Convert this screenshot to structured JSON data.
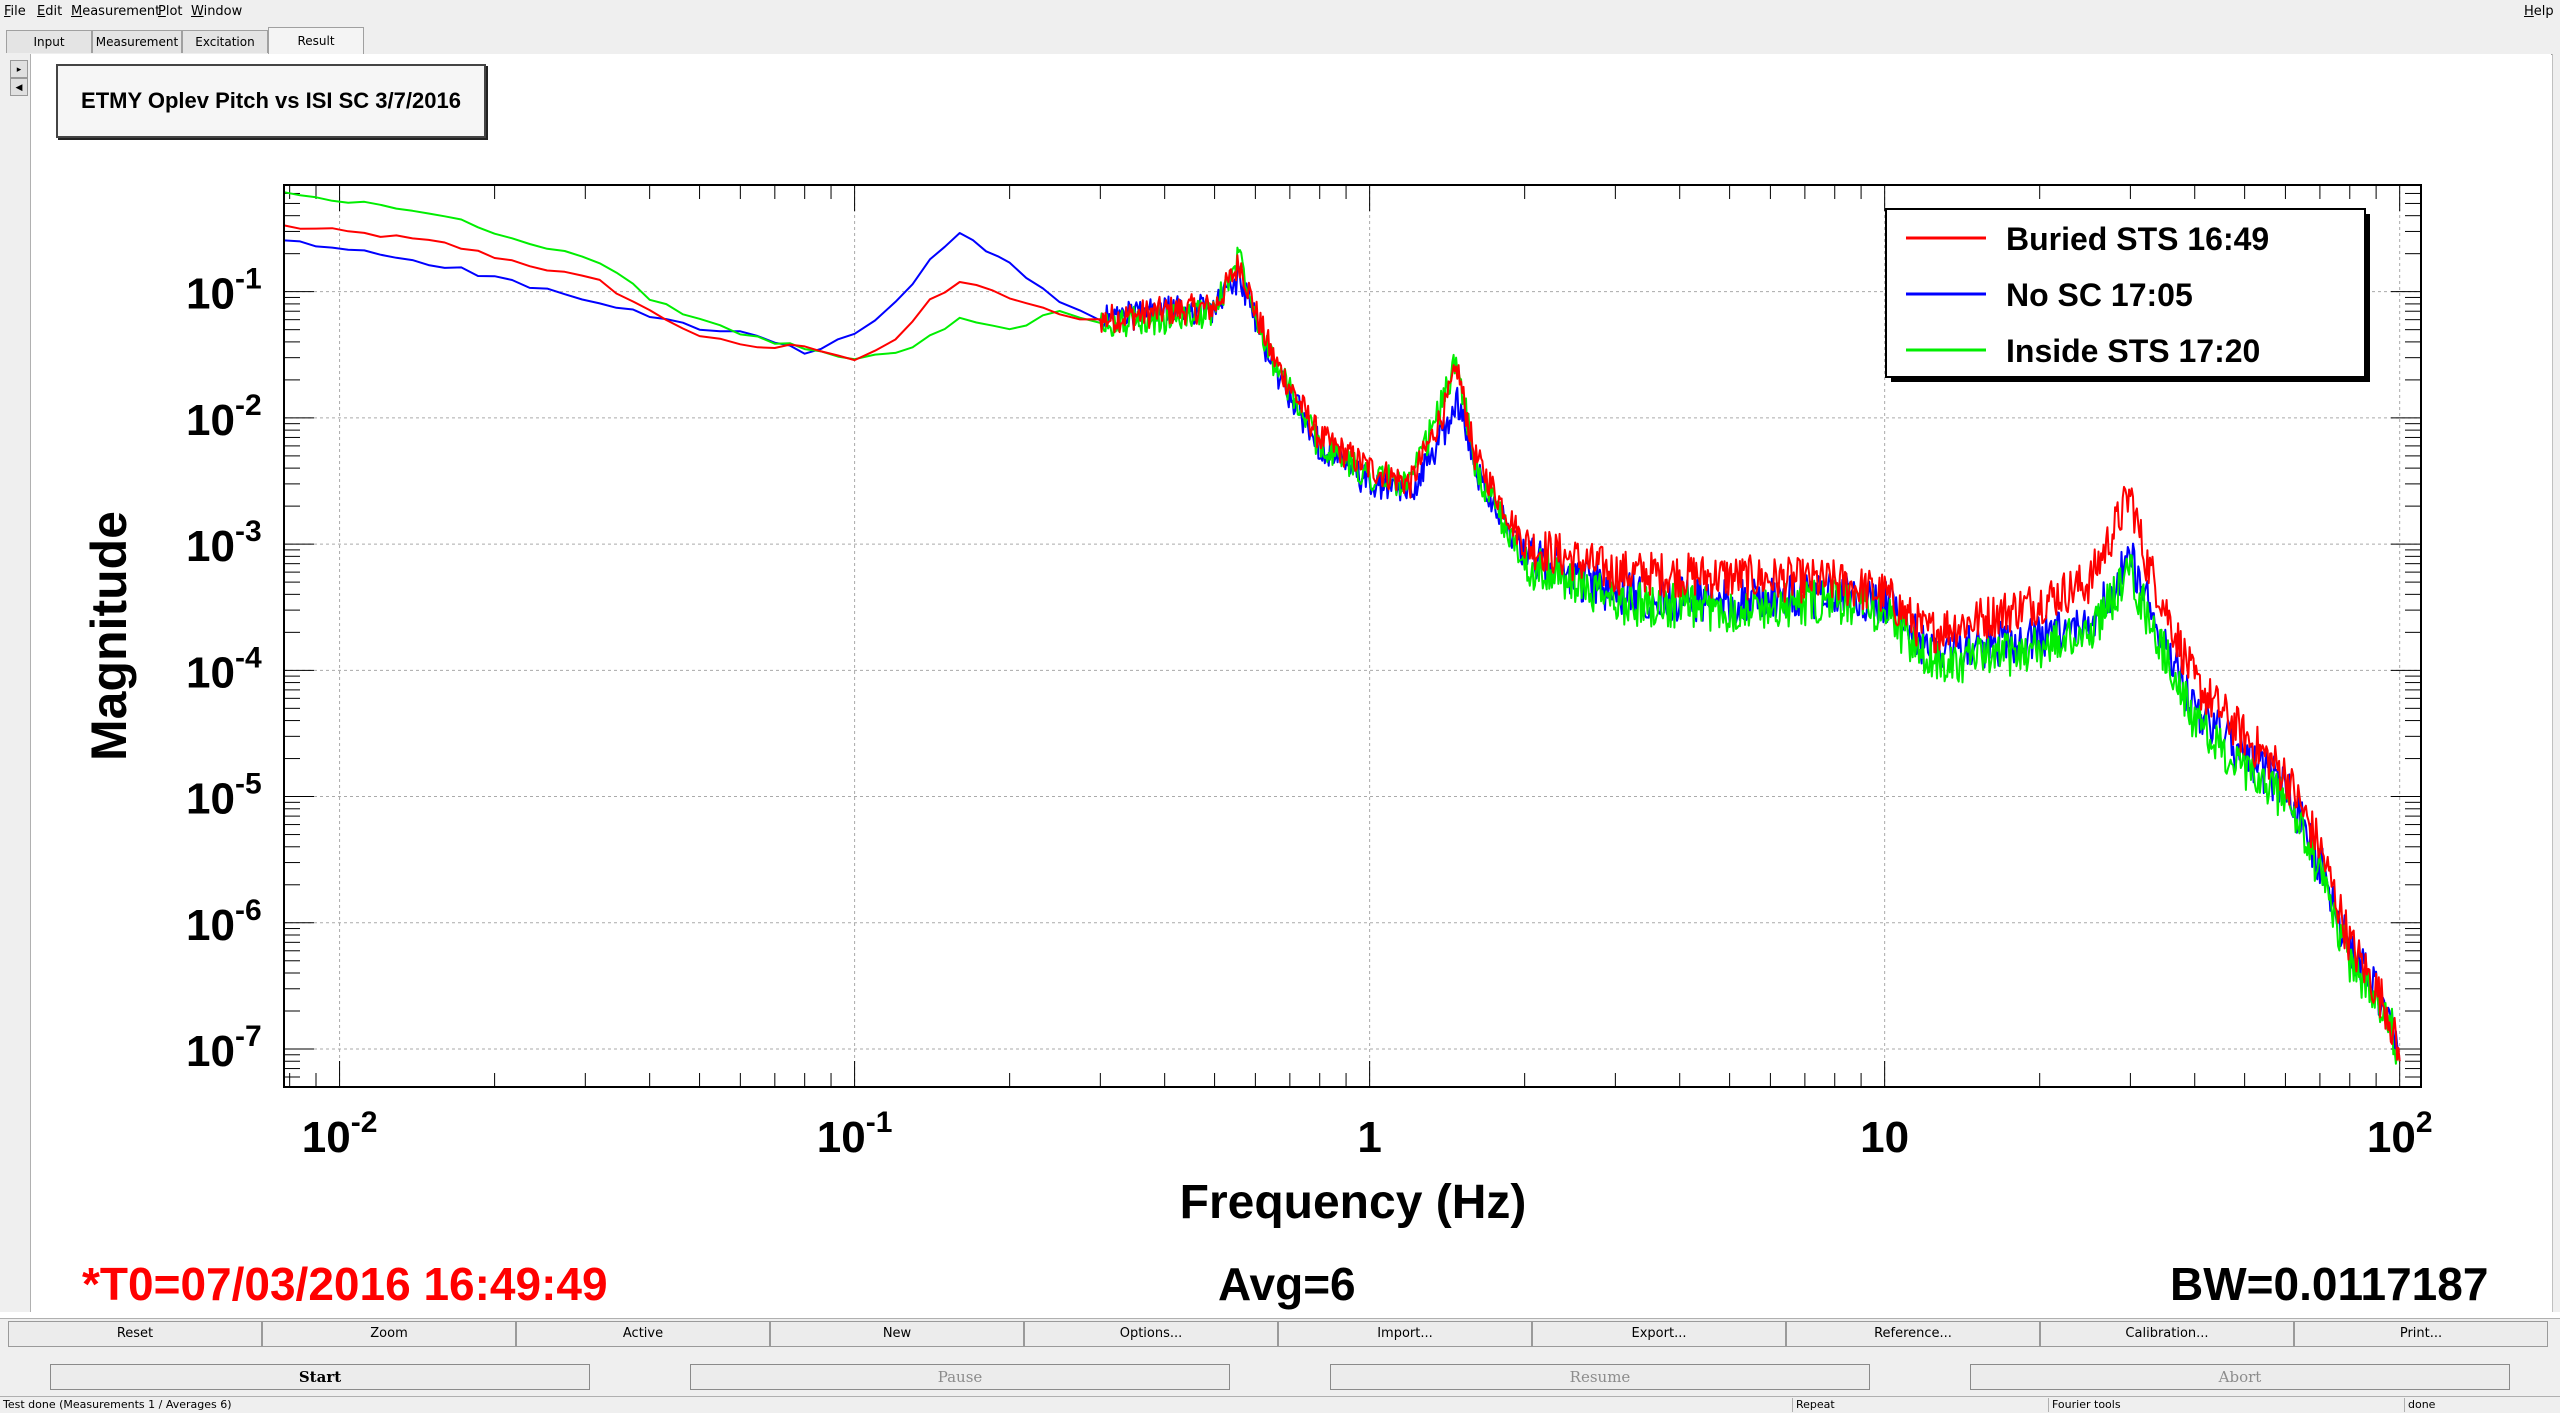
{
  "menu": {
    "items": [
      {
        "ul": "F",
        "rest": "ile"
      },
      {
        "ul": "E",
        "rest": "dit"
      },
      {
        "ul": "M",
        "rest": "easurement"
      },
      {
        "ul": "P",
        "rest": "lot"
      },
      {
        "ul": "W",
        "rest": "indow"
      }
    ],
    "help": {
      "ul": "H",
      "rest": "elp"
    }
  },
  "tabs": [
    "Input",
    "Measurement",
    "Excitation",
    "Result"
  ],
  "active_tab": "Result",
  "plot_title": "ETMY Oplev Pitch vs ISI SC 3/7/2016",
  "footer": {
    "t0": "*T0=07/03/2016 16:49:49",
    "avg": "Avg=6",
    "bw": "BW=0.0117187"
  },
  "buttons_row1": [
    "Reset",
    "Zoom",
    "Active",
    "New",
    "Options...",
    "Import...",
    "Export...",
    "Reference...",
    "Calibration...",
    "Print..."
  ],
  "buttons_row2": [
    "Start",
    "Pause",
    "Resume",
    "Abort"
  ],
  "status": {
    "left": "Test done (Measurements 1 / Averages 6)",
    "repeat": "Repeat",
    "tools": "Fourier tools",
    "state": "done"
  },
  "colors": {
    "red": "#ff0000",
    "blue": "#0000ff",
    "green": "#00ee00",
    "t0_text": "#ff0000"
  },
  "chart_data": {
    "type": "line",
    "xlabel": "Frequency (Hz)",
    "ylabel": "Magnitude",
    "xscale": "log",
    "yscale": "log",
    "xlim": [
      0.0078,
      110
    ],
    "ylim": [
      5e-08,
      0.7
    ],
    "grid": true,
    "legend_position": "top-right",
    "x_ticks": [
      {
        "value": 0.01,
        "base": "10",
        "exp": "-2"
      },
      {
        "value": 0.1,
        "base": "10",
        "exp": "-1"
      },
      {
        "value": 1,
        "base": "1",
        "exp": ""
      },
      {
        "value": 10,
        "base": "10",
        "exp": ""
      },
      {
        "value": 100,
        "base": "10",
        "exp": "2"
      }
    ],
    "y_ticks": [
      {
        "value": 0.1,
        "base": "10",
        "exp": "-1"
      },
      {
        "value": 0.01,
        "base": "10",
        "exp": "-2"
      },
      {
        "value": 0.001,
        "base": "10",
        "exp": "-3"
      },
      {
        "value": 0.0001,
        "base": "10",
        "exp": "-4"
      },
      {
        "value": 1e-05,
        "base": "10",
        "exp": "-5"
      },
      {
        "value": 1e-06,
        "base": "10",
        "exp": "-6"
      },
      {
        "value": 1e-07,
        "base": "10",
        "exp": "-7"
      }
    ],
    "series": [
      {
        "name": "Buried STS 16:49",
        "color": "#ff0000",
        "points": [
          [
            0.0078,
            0.33
          ],
          [
            0.012,
            0.28
          ],
          [
            0.016,
            0.24
          ],
          [
            0.02,
            0.19
          ],
          [
            0.032,
            0.12
          ],
          [
            0.04,
            0.07
          ],
          [
            0.05,
            0.045
          ],
          [
            0.06,
            0.037
          ],
          [
            0.07,
            0.036
          ],
          [
            0.08,
            0.038
          ],
          [
            0.1,
            0.029
          ],
          [
            0.12,
            0.04
          ],
          [
            0.14,
            0.085
          ],
          [
            0.16,
            0.12
          ],
          [
            0.2,
            0.09
          ],
          [
            0.25,
            0.065
          ],
          [
            0.3,
            0.06
          ],
          [
            0.4,
            0.07
          ],
          [
            0.5,
            0.075
          ],
          [
            0.56,
            0.17
          ],
          [
            0.6,
            0.07
          ],
          [
            0.65,
            0.03
          ],
          [
            0.8,
            0.007
          ],
          [
            1.0,
            0.004
          ],
          [
            1.2,
            0.003
          ],
          [
            1.4,
            0.012
          ],
          [
            1.48,
            0.025
          ],
          [
            1.6,
            0.005
          ],
          [
            2.0,
            0.001
          ],
          [
            3.0,
            0.0006
          ],
          [
            5.0,
            0.00055
          ],
          [
            8.0,
            0.0005
          ],
          [
            10,
            0.0004
          ],
          [
            12,
            0.0002
          ],
          [
            15,
            0.00025
          ],
          [
            20,
            0.00035
          ],
          [
            25,
            0.0005
          ],
          [
            30,
            0.0025
          ],
          [
            32,
            0.0008
          ],
          [
            40,
            8e-05
          ],
          [
            50,
            3e-05
          ],
          [
            60,
            1.5e-05
          ],
          [
            70,
            4e-06
          ],
          [
            80,
            7e-07
          ],
          [
            90,
            3e-07
          ],
          [
            95,
            2e-07
          ],
          [
            100,
            8e-08
          ]
        ]
      },
      {
        "name": "No SC 17:05",
        "color": "#0000ff",
        "points": [
          [
            0.0078,
            0.25
          ],
          [
            0.012,
            0.2
          ],
          [
            0.016,
            0.16
          ],
          [
            0.02,
            0.13
          ],
          [
            0.032,
            0.08
          ],
          [
            0.04,
            0.065
          ],
          [
            0.05,
            0.05
          ],
          [
            0.06,
            0.048
          ],
          [
            0.07,
            0.04
          ],
          [
            0.08,
            0.032
          ],
          [
            0.1,
            0.045
          ],
          [
            0.12,
            0.08
          ],
          [
            0.14,
            0.18
          ],
          [
            0.16,
            0.3
          ],
          [
            0.18,
            0.2
          ],
          [
            0.2,
            0.17
          ],
          [
            0.25,
            0.08
          ],
          [
            0.3,
            0.06
          ],
          [
            0.4,
            0.07
          ],
          [
            0.5,
            0.075
          ],
          [
            0.56,
            0.13
          ],
          [
            0.6,
            0.06
          ],
          [
            0.65,
            0.025
          ],
          [
            0.8,
            0.006
          ],
          [
            1.0,
            0.003
          ],
          [
            1.2,
            0.0025
          ],
          [
            1.4,
            0.008
          ],
          [
            1.48,
            0.014
          ],
          [
            1.6,
            0.004
          ],
          [
            2.0,
            0.0008
          ],
          [
            3.0,
            0.0004
          ],
          [
            5.0,
            0.00035
          ],
          [
            8.0,
            0.0004
          ],
          [
            10,
            0.00035
          ],
          [
            12,
            0.00015
          ],
          [
            15,
            0.00015
          ],
          [
            20,
            0.00018
          ],
          [
            25,
            0.00022
          ],
          [
            30,
            0.0008
          ],
          [
            32,
            0.0004
          ],
          [
            40,
            5e-05
          ],
          [
            50,
            2e-05
          ],
          [
            60,
            1.2e-05
          ],
          [
            70,
            3e-06
          ],
          [
            80,
            6e-07
          ],
          [
            90,
            3e-07
          ],
          [
            95,
            2e-07
          ],
          [
            100,
            8e-08
          ]
        ]
      },
      {
        "name": "Inside STS 17:20",
        "color": "#00ee00",
        "points": [
          [
            0.0078,
            0.6
          ],
          [
            0.012,
            0.48
          ],
          [
            0.016,
            0.4
          ],
          [
            0.02,
            0.3
          ],
          [
            0.032,
            0.17
          ],
          [
            0.04,
            0.09
          ],
          [
            0.05,
            0.06
          ],
          [
            0.06,
            0.045
          ],
          [
            0.07,
            0.04
          ],
          [
            0.08,
            0.035
          ],
          [
            0.1,
            0.03
          ],
          [
            0.12,
            0.032
          ],
          [
            0.14,
            0.045
          ],
          [
            0.16,
            0.06
          ],
          [
            0.2,
            0.05
          ],
          [
            0.25,
            0.07
          ],
          [
            0.3,
            0.055
          ],
          [
            0.4,
            0.06
          ],
          [
            0.5,
            0.07
          ],
          [
            0.56,
            0.2
          ],
          [
            0.6,
            0.07
          ],
          [
            0.65,
            0.028
          ],
          [
            0.8,
            0.006
          ],
          [
            1.0,
            0.0035
          ],
          [
            1.2,
            0.003
          ],
          [
            1.4,
            0.015
          ],
          [
            1.48,
            0.03
          ],
          [
            1.6,
            0.004
          ],
          [
            2.0,
            0.0007
          ],
          [
            3.0,
            0.00035
          ],
          [
            5.0,
            0.0003
          ],
          [
            8.0,
            0.00035
          ],
          [
            10,
            0.0003
          ],
          [
            12,
            0.00012
          ],
          [
            15,
            0.00012
          ],
          [
            20,
            0.00015
          ],
          [
            25,
            0.0002
          ],
          [
            30,
            0.0006
          ],
          [
            32,
            0.0003
          ],
          [
            40,
            4e-05
          ],
          [
            50,
            1.5e-05
          ],
          [
            60,
            1e-05
          ],
          [
            70,
            2.5e-06
          ],
          [
            80,
            5e-07
          ],
          [
            90,
            2.5e-07
          ],
          [
            95,
            2e-07
          ],
          [
            100,
            8e-08
          ]
        ]
      }
    ]
  }
}
